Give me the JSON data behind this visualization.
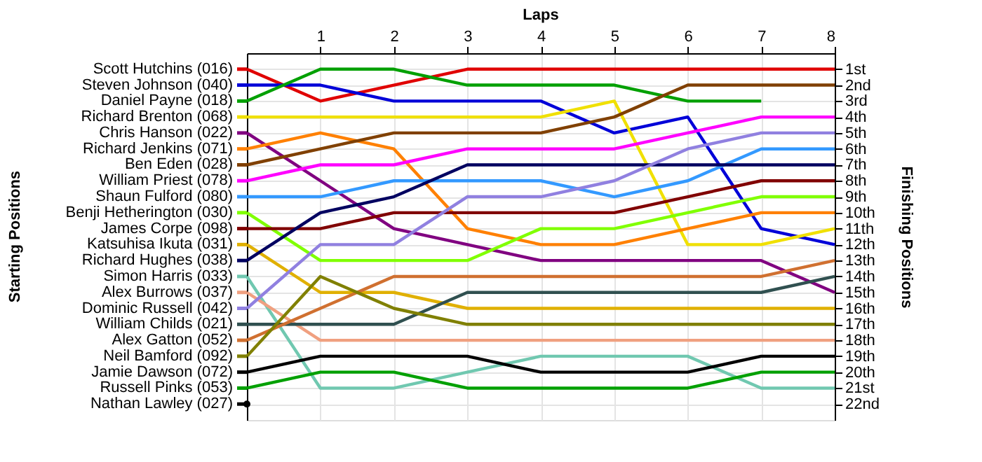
{
  "chart_data": {
    "type": "line",
    "title": "Laps",
    "y2label": "Finishing Positions",
    "x": [
      0,
      1,
      2,
      3,
      4,
      5,
      6,
      7,
      8
    ],
    "xlim": [
      0,
      8
    ],
    "xticks": [
      1,
      2,
      3,
      4,
      5,
      6,
      7,
      8
    ],
    "y2lim": [
      23,
      0
    ],
    "y2ticks": [
      {
        "value": 1,
        "label": "1st"
      },
      {
        "value": 2,
        "label": "2nd"
      },
      {
        "value": 3,
        "label": "3rd"
      },
      {
        "value": 4,
        "label": "4th"
      },
      {
        "value": 5,
        "label": "5th"
      },
      {
        "value": 6,
        "label": "6th"
      },
      {
        "value": 7,
        "label": "7th"
      },
      {
        "value": 8,
        "label": "8th"
      },
      {
        "value": 9,
        "label": "9th"
      },
      {
        "value": 10,
        "label": "10th"
      },
      {
        "value": 11,
        "label": "11th"
      },
      {
        "value": 12,
        "label": "12th"
      },
      {
        "value": 13,
        "label": "13th"
      },
      {
        "value": 14,
        "label": "14th"
      },
      {
        "value": 15,
        "label": "15th"
      },
      {
        "value": 16,
        "label": "16th"
      },
      {
        "value": 17,
        "label": "17th"
      },
      {
        "value": 18,
        "label": "18th"
      },
      {
        "value": 19,
        "label": "19th"
      },
      {
        "value": 20,
        "label": "20th"
      },
      {
        "value": 21,
        "label": "21st"
      },
      {
        "value": 22,
        "label": "22nd"
      }
    ],
    "grid": true,
    "marker": "none",
    "line_style": "solid",
    "legend": "left",
    "annotations": [
      "Starting Positions"
    ],
    "series": [
      {
        "name": "Scott Hutchins (016)",
        "axis": "y2",
        "color": "#e00000",
        "values": [
          1,
          3,
          2,
          1,
          1,
          1,
          1,
          1,
          1
        ]
      },
      {
        "name": "Steven Johnson (040)",
        "axis": "y2",
        "color": "#0000d8",
        "values": [
          2,
          2,
          3,
          3,
          3,
          5,
          4,
          11,
          12
        ]
      },
      {
        "name": "Daniel Payne (018)",
        "axis": "y2",
        "color": "#00a000",
        "values": [
          3,
          1,
          1,
          2,
          2,
          2,
          3,
          3,
          null
        ]
      },
      {
        "name": "Richard Brenton (068)",
        "axis": "y2",
        "color": "#f0e000",
        "values": [
          4,
          4,
          4,
          4,
          4,
          3,
          12,
          12,
          11
        ]
      },
      {
        "name": "Chris Hanson (022)",
        "axis": "y2",
        "color": "#800080",
        "values": [
          5,
          8,
          11,
          12,
          13,
          13,
          13,
          13,
          15
        ]
      },
      {
        "name": "Richard Jenkins (071)",
        "axis": "y2",
        "color": "#ff8000",
        "values": [
          6,
          5,
          6,
          11,
          12,
          12,
          11,
          10,
          10
        ]
      },
      {
        "name": "Ben Eden (028)",
        "axis": "y2",
        "color": "#804000",
        "values": [
          7,
          6,
          5,
          5,
          5,
          4,
          2,
          2,
          2
        ]
      },
      {
        "name": "William Priest (078)",
        "axis": "y2",
        "color": "#ff00ff",
        "values": [
          8,
          7,
          7,
          6,
          6,
          6,
          5,
          4,
          4
        ]
      },
      {
        "name": "Shaun Fulford (080)",
        "axis": "y2",
        "color": "#3399ff",
        "values": [
          9,
          9,
          8,
          8,
          8,
          9,
          8,
          6,
          6
        ]
      },
      {
        "name": "Benji Hetherington (030)",
        "axis": "y2",
        "color": "#80ff00",
        "values": [
          10,
          13,
          13,
          13,
          11,
          11,
          10,
          9,
          9
        ]
      },
      {
        "name": "James Corpe (098)",
        "axis": "y2",
        "color": "#800000",
        "values": [
          11,
          11,
          10,
          10,
          10,
          10,
          9,
          8,
          8
        ]
      },
      {
        "name": "Katsuhisa Ikuta (031)",
        "axis": "y2",
        "color": "#e0b000",
        "values": [
          12,
          15,
          15,
          16,
          16,
          16,
          16,
          16,
          16
        ]
      },
      {
        "name": "Richard Hughes (038)",
        "axis": "y2",
        "color": "#000060",
        "values": [
          13,
          10,
          9,
          7,
          7,
          7,
          7,
          7,
          7
        ]
      },
      {
        "name": "Simon Harris (033)",
        "axis": "y2",
        "color": "#70c8b0",
        "values": [
          14,
          21,
          21,
          20,
          19,
          19,
          19,
          21,
          21
        ]
      },
      {
        "name": "Alex Burrows (037)",
        "axis": "y2",
        "color": "#f0a080",
        "values": [
          15,
          18,
          18,
          18,
          18,
          18,
          18,
          18,
          18
        ]
      },
      {
        "name": "Dominic Russell (042)",
        "axis": "y2",
        "color": "#9080e0",
        "values": [
          16,
          12,
          12,
          9,
          9,
          8,
          6,
          5,
          5
        ]
      },
      {
        "name": "William Childs (021)",
        "axis": "y2",
        "color": "#305050",
        "values": [
          17,
          17,
          17,
          15,
          15,
          15,
          15,
          15,
          14
        ]
      },
      {
        "name": "Alex Gatton (052)",
        "axis": "y2",
        "color": "#d07030",
        "values": [
          18,
          16,
          14,
          14,
          14,
          14,
          14,
          14,
          13
        ]
      },
      {
        "name": "Neil Bamford (092)",
        "axis": "y2",
        "color": "#808000",
        "values": [
          19,
          14,
          16,
          17,
          17,
          17,
          17,
          17,
          17
        ]
      },
      {
        "name": "Jamie Dawson (072)",
        "axis": "y2",
        "color": "#000000",
        "values": [
          20,
          19,
          19,
          19,
          20,
          20,
          20,
          19,
          19
        ]
      },
      {
        "name": "Russell Pinks (053)",
        "axis": "y2",
        "color": "#00a000",
        "values": [
          21,
          20,
          20,
          21,
          21,
          21,
          21,
          20,
          20
        ]
      },
      {
        "name": "Nathan Lawley (027)",
        "axis": "y2",
        "color": "#000000",
        "marker": "circle",
        "values": [
          22,
          null,
          null,
          null,
          null,
          null,
          null,
          null,
          null
        ]
      }
    ]
  }
}
